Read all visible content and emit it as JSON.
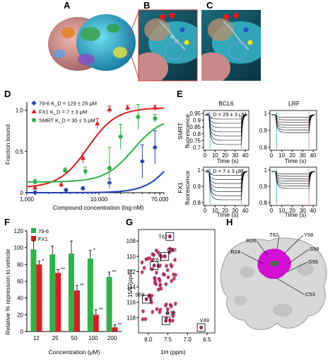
{
  "panel_labels": [
    "A",
    "B",
    "C",
    "D",
    "E",
    "F",
    "G",
    "H"
  ],
  "panel_a_image": "protein-surface-ribbon-structure",
  "panel_b_image": "binding-pocket-ligand-closeup",
  "panel_c_image": "binding-pocket-ligand-closeup-alt",
  "panel_h_image": "protein-surface-magenta-binding-site",
  "colors": {
    "green": "#2db34a",
    "red": "#e01a22",
    "blue": "#1f3fb5",
    "magenta": "#d40fd4",
    "surface": "#d8d8d8"
  },
  "chart_data": [
    {
      "id": "D",
      "type": "line",
      "xlabel": "Compound concentration (log nM)",
      "ylabel": "Fraction bound",
      "xscale": "log",
      "xlim": [
        1000,
        80000
      ],
      "ylim": [
        0,
        1.1
      ],
      "xticks": [
        "1,000",
        "10,000",
        "70,000"
      ],
      "yticks": [
        "0",
        "0.5",
        "1.0"
      ],
      "legend": [
        "79-6 K_D = 129 ± 25 μM",
        "FX1 K_D = 7 ± 3 μM",
        "SMRT K_D = 30 ± 3 μM"
      ],
      "series": [
        {
          "name": "79-6",
          "color": "#1f3fb5",
          "kd": 129000,
          "x": [
            1300,
            3500,
            6000,
            14000,
            40000,
            60000
          ],
          "y": [
            0.0,
            0.03,
            0.05,
            0.12,
            0.38,
            0.55
          ],
          "err": [
            0.02,
            0.02,
            0.02,
            0.05,
            0.2,
            0.2
          ]
        },
        {
          "name": "FX1",
          "color": "#e01a22",
          "kd": 7000,
          "x": [
            1300,
            3000,
            6000,
            9500,
            14000,
            25000,
            60000
          ],
          "y": [
            0.06,
            0.1,
            0.42,
            0.84,
            1.01,
            1.03,
            1.03
          ],
          "err": [
            0.02,
            0.03,
            0.06,
            0.06,
            0.04,
            0.03,
            0.03
          ]
        },
        {
          "name": "SMRT",
          "color": "#2db34a",
          "kd": 30000,
          "x": [
            1300,
            3400,
            6500,
            14000,
            20000,
            35000,
            60000
          ],
          "y": [
            0.13,
            0.27,
            0.26,
            0.3,
            0.68,
            0.92,
            0.9
          ],
          "err": [
            0.03,
            0.03,
            0.05,
            0.25,
            0.15,
            0.15,
            0.05
          ]
        }
      ]
    },
    {
      "id": "E",
      "type": "line",
      "group_titles": [
        "BCL6",
        "LRF"
      ],
      "row_labels": [
        "SMRT",
        "FX1"
      ],
      "ylabel_suffix": "fluorescence",
      "xlabel": "Time (s)",
      "xticks": [
        "0",
        "10",
        "20",
        "30",
        "40"
      ],
      "yticks_top": [
        "0.95",
        "0.9",
        "0.85",
        "0.8",
        "0.75",
        "0.7"
      ],
      "yticks_right_top": [
        "1",
        "0.9",
        "0.8"
      ],
      "yticks_bottom": [
        "1",
        "0.9",
        "0.8"
      ],
      "annot_top": "K_D = 29 ± 3 μM",
      "annot_bottom": "K_D = 7 ± 3 μM",
      "n_traces": 7
    },
    {
      "id": "F",
      "type": "bar",
      "xlabel": "Concentration (μM)",
      "ylabel": "Relative % repression to vehicle",
      "categories": [
        "12",
        "25",
        "50",
        "100",
        "200"
      ],
      "yticks": [
        "0",
        "20",
        "40",
        "60",
        "80",
        "100",
        "120"
      ],
      "ylim": [
        0,
        120
      ],
      "series": [
        {
          "name": "79-6",
          "color": "#2db34a",
          "values": [
            98,
            92,
            93,
            87,
            65
          ],
          "err": [
            10,
            10,
            15,
            10,
            6
          ],
          "sig": [
            "",
            "",
            "",
            "*",
            "**"
          ]
        },
        {
          "name": "FX1",
          "color": "#e01a22",
          "values": [
            80,
            70,
            49,
            20,
            5
          ],
          "err": [
            4,
            4,
            6,
            6,
            3
          ],
          "sig": [
            "*",
            "**",
            "**",
            "**",
            "**"
          ]
        }
      ]
    },
    {
      "id": "G",
      "type": "scatter",
      "xlabel": "1H (ppm)",
      "ylabel": "15N (ppm)",
      "xticks": [
        "8.0",
        "7.5",
        "7.0",
        "6.5"
      ],
      "yticks": [
        "108",
        "110",
        "112",
        "114",
        "116",
        "118"
      ],
      "residue_labels": [
        "T62",
        "F61",
        "C53",
        "S59",
        "R28",
        "V49"
      ]
    }
  ],
  "panel_h_labels": [
    "R24",
    "R28",
    "T62",
    "Y58",
    "S59",
    "G55",
    "C53"
  ]
}
